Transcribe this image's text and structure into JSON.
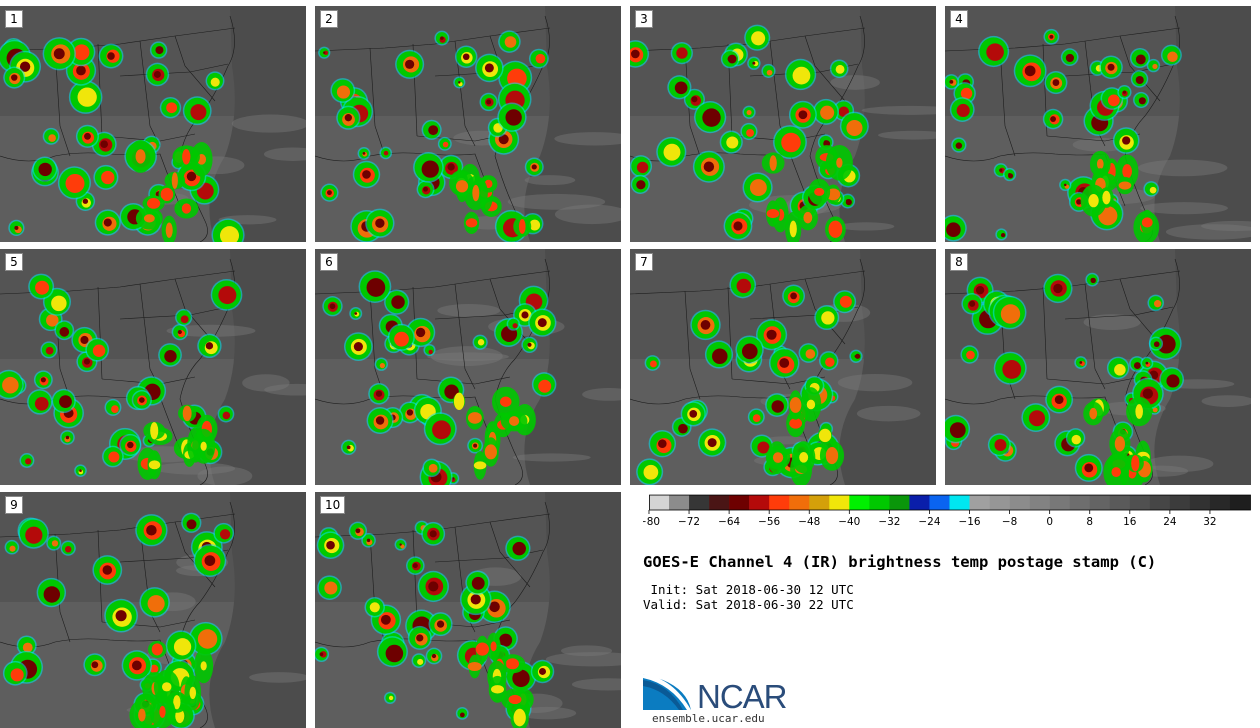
{
  "panels": [
    {
      "label": "1"
    },
    {
      "label": "2"
    },
    {
      "label": "3"
    },
    {
      "label": "4"
    },
    {
      "label": "5"
    },
    {
      "label": "6"
    },
    {
      "label": "7"
    },
    {
      "label": "8"
    },
    {
      "label": "9"
    },
    {
      "label": "10"
    }
  ],
  "colorbar": {
    "colors": [
      "#d4d4d4",
      "#8c8c8c",
      "#363636",
      "#4a1515",
      "#6e0000",
      "#b40a0a",
      "#ff3c0a",
      "#f06e0a",
      "#d4a00a",
      "#f0e60a",
      "#00f000",
      "#00c800",
      "#0a960a",
      "#0a1eaa",
      "#0a64f0",
      "#00e6f0",
      "#a0a0a0",
      "#969696",
      "#8c8c8c",
      "#828282",
      "#787878",
      "#6e6e6e",
      "#646464",
      "#5a5a5a",
      "#505050",
      "#464646",
      "#3c3c3c",
      "#323232",
      "#282828",
      "#1e1e1e"
    ],
    "tick_labels": [
      "−80",
      "−72",
      "−64",
      "−56",
      "−48",
      "−40",
      "−32",
      "−24",
      "−16",
      "−8",
      "0",
      "8",
      "16",
      "24",
      "32"
    ]
  },
  "title": "GOES-E Channel 4 (IR) brightness temp postage stamp (C)",
  "init_line": " Init: Sat 2018-06-30 12 UTC",
  "valid_line": "Valid: Sat 2018-06-30 22 UTC",
  "logo": {
    "name": "NCAR",
    "url": "ensemble.ucar.edu"
  }
}
